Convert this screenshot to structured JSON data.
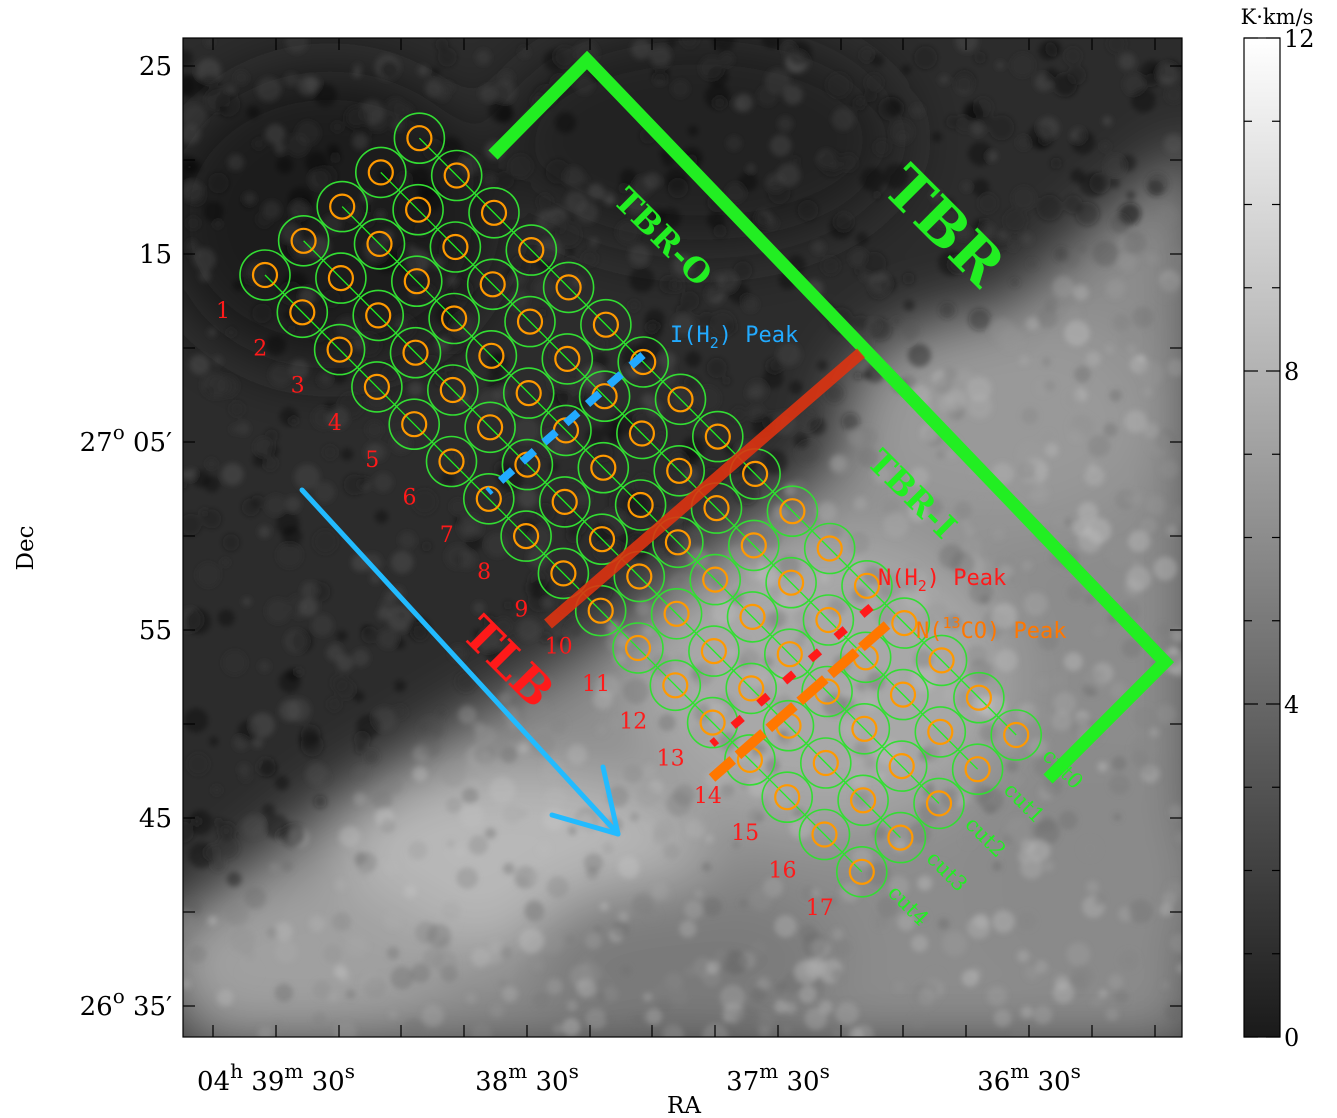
{
  "chart_data": {
    "type": "heatmap",
    "xlabel": "RA",
    "ylabel": "Dec",
    "x_ticks": [
      {
        "h": "04",
        "hs": "h",
        "m": "39",
        "ms": "m",
        "s": "30",
        "ss": "s"
      },
      {
        "h": "",
        "hs": "",
        "m": "38",
        "ms": "m",
        "s": "30",
        "ss": "s"
      },
      {
        "h": "",
        "hs": "",
        "m": "37",
        "ms": "m",
        "s": "30",
        "ss": "s"
      },
      {
        "h": "",
        "hs": "",
        "m": "36",
        "ms": "m",
        "s": "30",
        "ss": "s"
      }
    ],
    "y_ticks": [
      {
        "label": "25"
      },
      {
        "label": "15"
      },
      {
        "label": "27",
        "deg": "o",
        "arc": "05′"
      },
      {
        "label": "55"
      },
      {
        "label": "45"
      },
      {
        "label": "26",
        "deg": "o",
        "arc": "35′"
      }
    ],
    "colorbar": {
      "title": "K·km/s",
      "ticks": [
        "12",
        "8",
        "4",
        "0"
      ],
      "range": [
        0,
        12
      ]
    },
    "region_labels": {
      "tbr": "TBR",
      "tbr_o": "TBR-O",
      "tbr_i": "TBR-I",
      "tlb": "TLB"
    },
    "peaks": {
      "i_h2": {
        "text": "I(H",
        "sub": "2",
        "end": ") Peak"
      },
      "n_h2": {
        "text": "N(H",
        "sub": "2",
        "end": ") Peak"
      },
      "n_13co": {
        "text": "N(",
        "sup": "13",
        "end": "CO) Peak"
      }
    },
    "cuts": [
      "cut0",
      "cut1",
      "cut2",
      "cut3",
      "cut4"
    ],
    "positions": [
      "1",
      "2",
      "3",
      "4",
      "5",
      "6",
      "7",
      "8",
      "9",
      "10",
      "11",
      "12",
      "13",
      "14",
      "15",
      "16",
      "17"
    ],
    "colors": {
      "region": "#22ee22",
      "beam_outer": "#33dd33",
      "beam_inner": "#ff9900",
      "positions": "#ff1a1a",
      "tlb_arrow": "#22bbff",
      "i_h2": "#22aaff",
      "n_h2": "#ff1a1a",
      "n_13co": "#ff7700",
      "boundary": "#dd3311"
    }
  }
}
